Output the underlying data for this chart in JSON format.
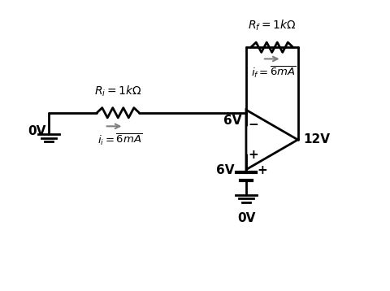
{
  "bg_color": "#ffffff",
  "line_color": "#000000",
  "lw": 2.0,
  "figsize": [
    4.8,
    3.58
  ],
  "dpi": 100,
  "xlim": [
    0,
    10
  ],
  "ylim": [
    0,
    7.5
  ],
  "Ri_label": "$R_i = 1k\\Omega$",
  "Rf_label": "$R_f = 1k\\Omega$",
  "ii_label": "$i_i = \\overline{6mA}$",
  "if_label": "$i_f = \\overline{6mA}$",
  "v6V_node": "6V",
  "v12V": "12V",
  "v0V_left": "0V",
  "v6V_bot": "6V",
  "v0V_bot": "0V",
  "plus_sym": "+",
  "minus_sym": "−",
  "fontsize_label": 9,
  "fontsize_volt": 10,
  "fontsize_sym": 10
}
